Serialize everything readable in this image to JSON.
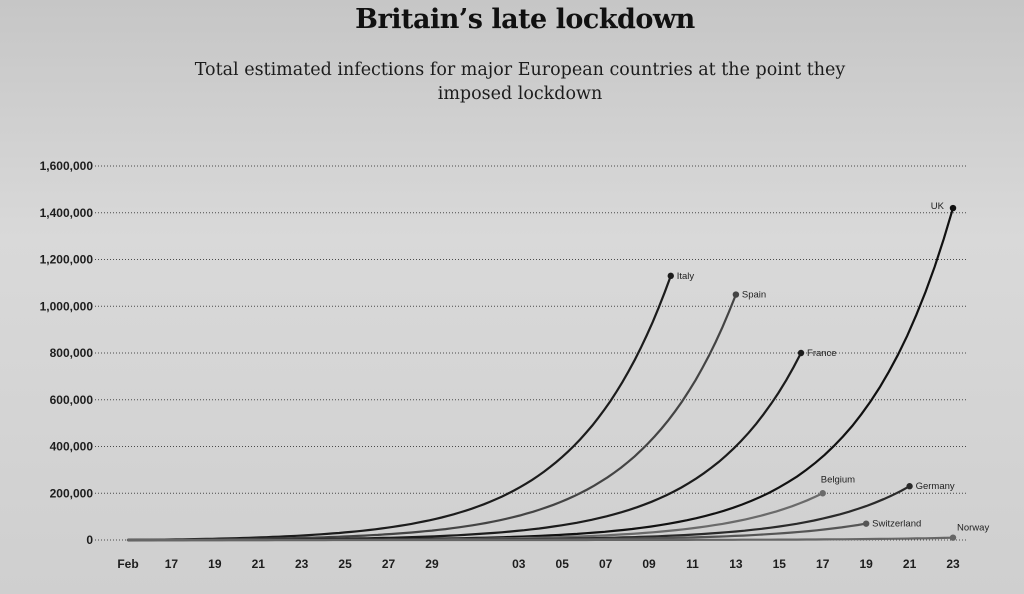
{
  "chart_data": {
    "type": "line",
    "title": "Britain’s late lockdown",
    "subtitle": "Total estimated infections for major European countries at the point they imposed lockdown",
    "xlabel": "",
    "ylabel": "",
    "ylim": [
      0,
      1600000
    ],
    "xlim": [
      0,
      38
    ],
    "grid": true,
    "y_ticks": [
      0,
      200000,
      400000,
      600000,
      800000,
      1000000,
      1200000,
      1400000,
      1600000
    ],
    "y_tick_labels": [
      "0",
      "200,000",
      "400,000",
      "600,000",
      "800,000",
      "1,000,000",
      "1,200,000",
      "1,400,000",
      "1,600,000"
    ],
    "x_ticks": [
      0,
      2,
      4,
      6,
      8,
      10,
      12,
      14,
      18,
      20,
      22,
      24,
      26,
      28,
      30,
      32,
      34,
      36,
      38
    ],
    "x_tick_labels": [
      "Feb",
      "17",
      "19",
      "21",
      "23",
      "25",
      "27",
      "29",
      "03",
      "05",
      "07",
      "09",
      "11",
      "13",
      "15",
      "17",
      "19",
      "21",
      "23"
    ],
    "series": [
      {
        "name": "Italy",
        "label": "Italy",
        "end_x": 25,
        "end_y": 1130000,
        "color": "#1c1c1c"
      },
      {
        "name": "Spain",
        "label": "Spain",
        "end_x": 28,
        "end_y": 1050000,
        "color": "#444444"
      },
      {
        "name": "France",
        "label": "France",
        "end_x": 31,
        "end_y": 800000,
        "color": "#1c1c1c"
      },
      {
        "name": "UK",
        "label": "UK",
        "end_x": 38,
        "end_y": 1420000,
        "color": "#111111"
      },
      {
        "name": "Belgium",
        "label": "Belgium",
        "end_x": 32,
        "end_y": 200000,
        "color": "#6a6a6a"
      },
      {
        "name": "Germany",
        "label": "Germany",
        "end_x": 36,
        "end_y": 230000,
        "color": "#2a2a2a"
      },
      {
        "name": "Switzerland",
        "label": "Switzerland",
        "end_x": 34,
        "end_y": 70000,
        "color": "#555555"
      },
      {
        "name": "Norway",
        "label": "Norway",
        "end_x": 38,
        "end_y": 10000,
        "color": "#666666"
      }
    ]
  }
}
